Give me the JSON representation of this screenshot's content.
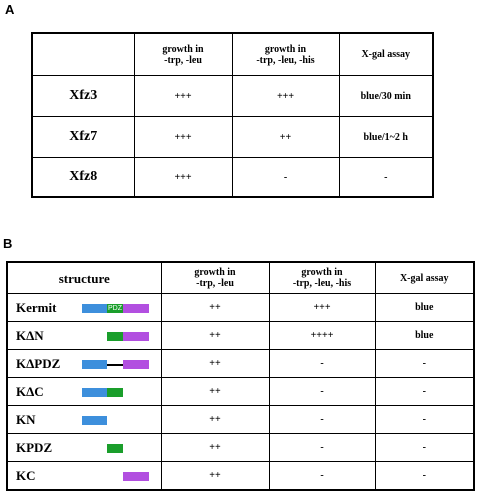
{
  "panel_a": {
    "label": "A",
    "headers": [
      "",
      "growth in\n-trp, -leu",
      "growth in\n-trp, -leu, -his",
      "X-gal assay"
    ],
    "rows": [
      {
        "name": "Xfz3",
        "c1": "+++",
        "c2": "+++",
        "c3": "blue/30 min"
      },
      {
        "name": "Xfz7",
        "c1": "+++",
        "c2": "++",
        "c3": "blue/1~2 h"
      },
      {
        "name": "Xfz8",
        "c1": "+++",
        "c2": "-",
        "c3": "-"
      }
    ]
  },
  "panel_b": {
    "label": "B",
    "headers": [
      "structure",
      "growth in\n-trp, -leu",
      "growth in\n-trp, -leu, -his",
      "X-gal assay"
    ],
    "pdz_label": "PDZ",
    "rows": [
      {
        "name": "Kermit",
        "c1": "++",
        "c2": "+++",
        "c3": "blue"
      },
      {
        "name": "KΔN",
        "c1": "++",
        "c2": "++++",
        "c3": "blue"
      },
      {
        "name": "KΔPDZ",
        "c1": "++",
        "c2": "-",
        "c3": "-"
      },
      {
        "name": "KΔC",
        "c1": "++",
        "c2": "-",
        "c3": "-"
      },
      {
        "name": "KN",
        "c1": "++",
        "c2": "-",
        "c3": "-"
      },
      {
        "name": "KPDZ",
        "c1": "++",
        "c2": "-",
        "c3": "-"
      },
      {
        "name": "KC",
        "c1": "++",
        "c2": "-",
        "c3": "-"
      }
    ]
  },
  "colors": {
    "n_domain": "#3d8fdc",
    "pdz_domain": "#1a9e2b",
    "c_domain": "#b24fe0"
  }
}
